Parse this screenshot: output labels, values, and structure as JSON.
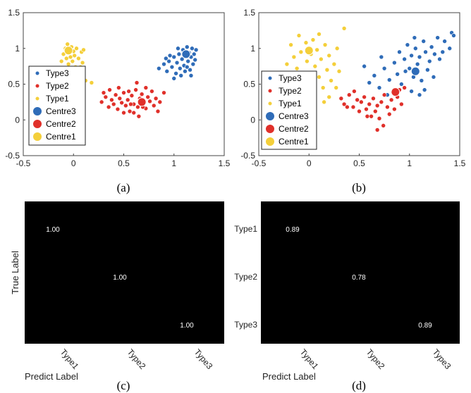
{
  "colors": {
    "type3": "#2f6cb8",
    "type2": "#e0302a",
    "type1": "#f4cf3a",
    "matrix_bg": "#000000",
    "matrix_text": "#ffffff"
  },
  "chart_data": [
    {
      "type": "scatter",
      "panel": "(a)",
      "xlim": [
        -0.5,
        1.5
      ],
      "ylim": [
        -0.5,
        1.5
      ],
      "xticks": [
        "-0.5",
        "0",
        "0.5",
        "1",
        "1.5"
      ],
      "yticks": [
        "-0.5",
        "0",
        "0.5",
        "1",
        "1.5"
      ],
      "legend": [
        "Type3",
        "Type2",
        "Type1",
        "Centre3",
        "Centre2",
        "Centre1"
      ],
      "legend_placement": "center-left",
      "centres": [
        {
          "name": "Centre3",
          "x": 1.12,
          "y": 0.92
        },
        {
          "name": "Centre2",
          "x": 0.68,
          "y": 0.25
        },
        {
          "name": "Centre1",
          "x": -0.05,
          "y": 0.97
        }
      ],
      "series": [
        {
          "name": "Type3",
          "points": [
            [
              0.85,
              0.72
            ],
            [
              0.9,
              0.78
            ],
            [
              0.93,
              0.68
            ],
            [
              0.95,
              0.82
            ],
            [
              0.98,
              0.74
            ],
            [
              1.0,
              0.88
            ],
            [
              1.02,
              0.65
            ],
            [
              1.03,
              0.8
            ],
            [
              1.05,
              0.92
            ],
            [
              1.06,
              0.72
            ],
            [
              1.08,
              0.85
            ],
            [
              1.09,
              0.98
            ],
            [
              1.1,
              0.76
            ],
            [
              1.12,
              0.9
            ],
            [
              1.13,
              1.02
            ],
            [
              1.14,
              0.82
            ],
            [
              1.15,
              0.94
            ],
            [
              1.16,
              0.7
            ],
            [
              1.17,
              0.88
            ],
            [
              1.18,
              1.0
            ],
            [
              1.19,
              0.78
            ],
            [
              1.2,
              0.92
            ],
            [
              1.21,
              0.84
            ],
            [
              1.22,
              0.98
            ],
            [
              1.07,
              0.62
            ],
            [
              1.0,
              0.58
            ],
            [
              0.96,
              0.9
            ],
            [
              1.11,
              0.68
            ],
            [
              1.04,
              1.0
            ],
            [
              1.17,
              0.62
            ],
            [
              0.92,
              0.86
            ],
            [
              1.13,
              0.74
            ]
          ]
        },
        {
          "name": "Type2",
          "points": [
            [
              0.28,
              0.25
            ],
            [
              0.32,
              0.32
            ],
            [
              0.35,
              0.18
            ],
            [
              0.38,
              0.28
            ],
            [
              0.4,
              0.22
            ],
            [
              0.42,
              0.35
            ],
            [
              0.44,
              0.15
            ],
            [
              0.46,
              0.3
            ],
            [
              0.48,
              0.24
            ],
            [
              0.5,
              0.38
            ],
            [
              0.52,
              0.2
            ],
            [
              0.54,
              0.28
            ],
            [
              0.56,
              0.12
            ],
            [
              0.58,
              0.34
            ],
            [
              0.6,
              0.22
            ],
            [
              0.62,
              0.42
            ],
            [
              0.64,
              0.18
            ],
            [
              0.66,
              0.3
            ],
            [
              0.68,
              0.36
            ],
            [
              0.7,
              0.24
            ],
            [
              0.72,
              0.16
            ],
            [
              0.74,
              0.32
            ],
            [
              0.76,
              0.26
            ],
            [
              0.78,
              0.4
            ],
            [
              0.8,
              0.2
            ],
            [
              0.82,
              0.3
            ],
            [
              0.86,
              0.25
            ],
            [
              0.9,
              0.38
            ],
            [
              0.55,
              0.4
            ],
            [
              0.45,
              0.45
            ],
            [
              0.6,
              0.1
            ],
            [
              0.72,
              0.45
            ],
            [
              0.36,
              0.42
            ],
            [
              0.5,
              0.1
            ],
            [
              0.65,
              0.05
            ],
            [
              0.84,
              0.12
            ],
            [
              0.3,
              0.38
            ],
            [
              0.63,
              0.52
            ],
            [
              0.57,
              0.22
            ],
            [
              0.69,
              0.18
            ]
          ]
        },
        {
          "name": "Type1",
          "points": [
            [
              -0.12,
              0.82
            ],
            [
              -0.1,
              0.92
            ],
            [
              -0.08,
              1.0
            ],
            [
              -0.07,
              0.86
            ],
            [
              -0.06,
              1.06
            ],
            [
              -0.05,
              0.78
            ],
            [
              -0.04,
              0.95
            ],
            [
              -0.03,
              0.88
            ],
            [
              -0.02,
              1.02
            ],
            [
              -0.01,
              0.82
            ],
            [
              0.0,
              0.96
            ],
            [
              0.01,
              0.9
            ],
            [
              0.02,
              0.74
            ],
            [
              0.03,
              1.0
            ],
            [
              0.05,
              0.86
            ],
            [
              0.06,
              0.68
            ],
            [
              0.08,
              0.95
            ],
            [
              0.1,
              0.98
            ],
            [
              0.04,
              0.62
            ],
            [
              0.12,
              0.55
            ],
            [
              0.18,
              0.52
            ],
            [
              0.09,
              0.8
            ],
            [
              -0.09,
              0.72
            ],
            [
              0.07,
              0.74
            ]
          ]
        }
      ]
    },
    {
      "type": "scatter",
      "panel": "(b)",
      "xlim": [
        -0.5,
        1.5
      ],
      "ylim": [
        -0.5,
        1.5
      ],
      "xticks": [
        "-0.5",
        "0",
        "0.5",
        "1",
        "1.5"
      ],
      "yticks": [
        "-0.5",
        "0",
        "0.5",
        "1",
        "1.5"
      ],
      "legend": [
        "Type3",
        "Type2",
        "Type1",
        "Centre3",
        "Centre2",
        "Centre1"
      ],
      "legend_placement": "bottom-left",
      "centres": [
        {
          "name": "Centre3",
          "x": 1.06,
          "y": 0.68
        },
        {
          "name": "Centre2",
          "x": 0.86,
          "y": 0.39
        },
        {
          "name": "Centre1",
          "x": 0.0,
          "y": 0.97
        }
      ],
      "series": [
        {
          "name": "Type3",
          "points": [
            [
              0.6,
              0.52
            ],
            [
              0.65,
              0.62
            ],
            [
              0.7,
              0.45
            ],
            [
              0.75,
              0.72
            ],
            [
              0.8,
              0.56
            ],
            [
              0.85,
              0.8
            ],
            [
              0.88,
              0.64
            ],
            [
              0.9,
              0.95
            ],
            [
              0.92,
              0.5
            ],
            [
              0.95,
              0.85
            ],
            [
              0.98,
              1.05
            ],
            [
              1.0,
              0.72
            ],
            [
              1.02,
              0.9
            ],
            [
              1.04,
              0.6
            ],
            [
              1.06,
              1.0
            ],
            [
              1.08,
              0.78
            ],
            [
              1.1,
              0.88
            ],
            [
              1.12,
              0.55
            ],
            [
              1.14,
              1.1
            ],
            [
              1.16,
              0.95
            ],
            [
              1.18,
              0.7
            ],
            [
              1.2,
              0.82
            ],
            [
              1.22,
              1.02
            ],
            [
              1.25,
              0.92
            ],
            [
              1.28,
              1.15
            ],
            [
              1.3,
              0.85
            ],
            [
              1.35,
              1.1
            ],
            [
              1.4,
              1.0
            ],
            [
              1.42,
              1.22
            ],
            [
              1.44,
              1.18
            ],
            [
              1.02,
              0.4
            ],
            [
              1.1,
              0.35
            ],
            [
              1.15,
              0.42
            ],
            [
              0.78,
              0.35
            ],
            [
              0.96,
              0.68
            ],
            [
              1.24,
              0.6
            ],
            [
              0.72,
              0.88
            ],
            [
              0.55,
              0.75
            ],
            [
              1.33,
              0.95
            ],
            [
              1.05,
              1.15
            ]
          ]
        },
        {
          "name": "Type2",
          "points": [
            [
              0.32,
              0.3
            ],
            [
              0.35,
              0.22
            ],
            [
              0.4,
              0.35
            ],
            [
              0.44,
              0.18
            ],
            [
              0.48,
              0.28
            ],
            [
              0.5,
              0.12
            ],
            [
              0.52,
              0.25
            ],
            [
              0.55,
              0.32
            ],
            [
              0.57,
              0.15
            ],
            [
              0.6,
              0.22
            ],
            [
              0.62,
              0.05
            ],
            [
              0.64,
              0.3
            ],
            [
              0.66,
              0.12
            ],
            [
              0.68,
              0.2
            ],
            [
              0.7,
              0.02
            ],
            [
              0.72,
              0.25
            ],
            [
              0.75,
              0.35
            ],
            [
              0.78,
              0.18
            ],
            [
              0.82,
              0.28
            ],
            [
              0.85,
              0.15
            ],
            [
              0.88,
              0.32
            ],
            [
              0.9,
              0.42
            ],
            [
              0.92,
              0.22
            ],
            [
              0.95,
              0.45
            ],
            [
              0.68,
              -0.14
            ],
            [
              0.58,
              0.05
            ],
            [
              0.45,
              0.4
            ],
            [
              0.38,
              0.18
            ],
            [
              0.8,
              0.08
            ],
            [
              0.74,
              -0.08
            ]
          ]
        },
        {
          "name": "Type1",
          "points": [
            [
              -0.3,
              0.6
            ],
            [
              -0.22,
              0.78
            ],
            [
              -0.18,
              1.05
            ],
            [
              -0.15,
              0.88
            ],
            [
              -0.12,
              0.72
            ],
            [
              -0.1,
              1.18
            ],
            [
              -0.08,
              0.95
            ],
            [
              -0.05,
              0.65
            ],
            [
              -0.03,
              1.08
            ],
            [
              -0.02,
              0.82
            ],
            [
              0.0,
              0.52
            ],
            [
              0.02,
              0.92
            ],
            [
              0.04,
              1.12
            ],
            [
              0.06,
              0.75
            ],
            [
              0.08,
              0.98
            ],
            [
              0.1,
              0.6
            ],
            [
              0.12,
              0.85
            ],
            [
              0.14,
              0.45
            ],
            [
              0.16,
              1.05
            ],
            [
              0.18,
              0.7
            ],
            [
              0.2,
              0.9
            ],
            [
              0.22,
              0.55
            ],
            [
              0.25,
              0.78
            ],
            [
              0.28,
              1.0
            ],
            [
              0.3,
              0.68
            ],
            [
              0.35,
              1.28
            ],
            [
              0.2,
              0.32
            ],
            [
              0.05,
              0.35
            ],
            [
              0.15,
              0.25
            ],
            [
              0.27,
              0.45
            ],
            [
              -0.2,
              0.42
            ],
            [
              0.1,
              1.2
            ]
          ]
        }
      ]
    },
    {
      "type": "heatmap",
      "panel": "(c)",
      "title": "",
      "xlabel": "Predict Label",
      "ylabel": "True Label",
      "categories": [
        "Type1",
        "Type2",
        "Type3"
      ],
      "show_y_tick_labels": false,
      "values": [
        [
          1.0,
          0,
          0
        ],
        [
          0,
          1.0,
          0
        ],
        [
          0,
          0,
          1.0
        ]
      ],
      "labels": [
        "1.00",
        "1.00",
        "1.00"
      ]
    },
    {
      "type": "heatmap",
      "panel": "(d)",
      "title": "",
      "xlabel": "Predict Label",
      "ylabel": "",
      "categories": [
        "Type1",
        "Type2",
        "Type3"
      ],
      "show_y_tick_labels": true,
      "values": [
        [
          0.89,
          0,
          0
        ],
        [
          0,
          0.78,
          0
        ],
        [
          0,
          0,
          0.89
        ]
      ],
      "labels": [
        "0.89",
        "0.78",
        "0.89"
      ]
    }
  ]
}
